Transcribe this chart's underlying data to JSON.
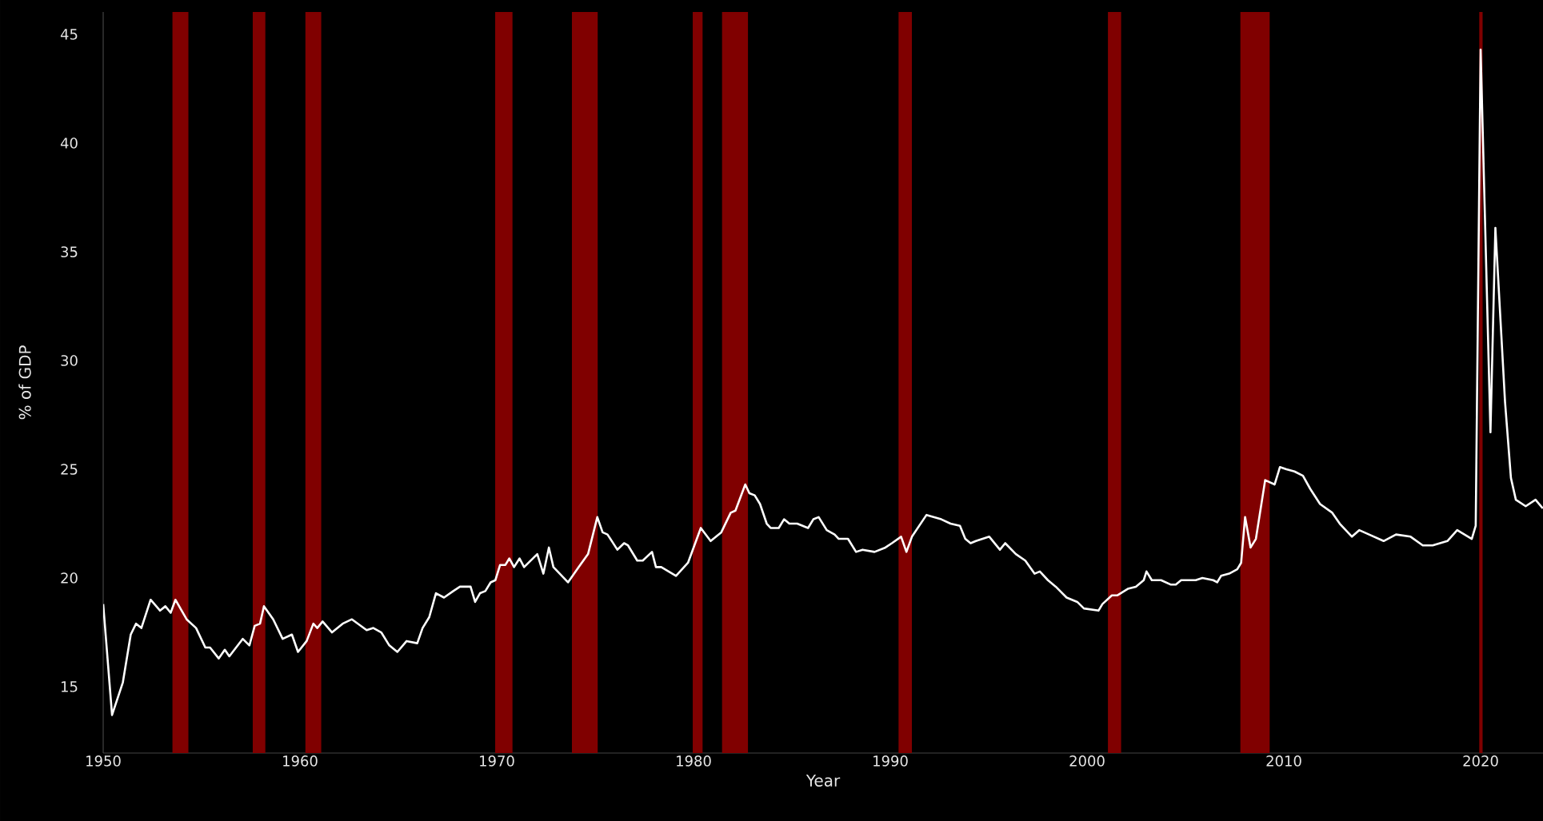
{
  "chart_data": {
    "type": "line",
    "xlabel": "Year",
    "ylabel": "% of GDP",
    "xlim": [
      1950,
      2023.17
    ],
    "ylim": [
      11.95,
      46.03
    ],
    "xticks": [
      1950,
      1960,
      1970,
      1980,
      1990,
      2000,
      2010,
      2020
    ],
    "yticks": [
      15,
      20,
      25,
      30,
      35,
      40,
      45
    ],
    "grid": false,
    "bands": [
      {
        "axis": "x",
        "from": 1953.52,
        "to": 1954.33,
        "color": "#800000"
      },
      {
        "axis": "x",
        "from": 1957.6,
        "to": 1958.24,
        "color": "#800000"
      },
      {
        "axis": "x",
        "from": 1960.27,
        "to": 1961.08,
        "color": "#800000"
      },
      {
        "axis": "x",
        "from": 1969.92,
        "to": 1970.8,
        "color": "#800000"
      },
      {
        "axis": "x",
        "from": 1973.82,
        "to": 1975.13,
        "color": "#800000"
      },
      {
        "axis": "x",
        "from": 1979.96,
        "to": 1980.46,
        "color": "#800000"
      },
      {
        "axis": "x",
        "from": 1981.45,
        "to": 1982.77,
        "color": "#800000"
      },
      {
        "axis": "x",
        "from": 1990.42,
        "to": 1991.1,
        "color": "#800000"
      },
      {
        "axis": "x",
        "from": 2001.06,
        "to": 2001.73,
        "color": "#800000"
      },
      {
        "axis": "x",
        "from": 2007.79,
        "to": 2009.28,
        "color": "#800000"
      },
      {
        "axis": "x",
        "from": 2019.93,
        "to": 2020.1,
        "color": "#800000"
      }
    ],
    "series": [
      {
        "color": "#ffffff",
        "x": [
          1950.0,
          1950.45,
          1951.0,
          1951.4,
          1951.67,
          1951.94,
          1952.41,
          1952.89,
          1953.16,
          1953.43,
          1953.67,
          1954.24,
          1954.72,
          1955.19,
          1955.43,
          1955.87,
          1956.18,
          1956.41,
          1957.09,
          1957.43,
          1957.7,
          1957.97,
          1958.17,
          1958.64,
          1959.12,
          1959.59,
          1959.9,
          1960.34,
          1960.68,
          1960.88,
          1961.15,
          1961.63,
          1962.17,
          1962.64,
          1963.39,
          1963.73,
          1964.13,
          1964.54,
          1964.95,
          1965.42,
          1965.96,
          1966.23,
          1966.57,
          1966.91,
          1967.32,
          1967.79,
          1968.13,
          1968.67,
          1968.9,
          1969.15,
          1969.42,
          1969.69,
          1969.93,
          1970.17,
          1970.44,
          1970.64,
          1970.88,
          1971.16,
          1971.39,
          1972.06,
          1972.37,
          1972.65,
          1972.88,
          1973.62,
          1974.16,
          1974.64,
          1975.11,
          1975.38,
          1975.63,
          1976.13,
          1976.47,
          1976.67,
          1977.14,
          1977.42,
          1977.89,
          1978.09,
          1978.36,
          1979.11,
          1979.72,
          1980.37,
          1980.87,
          1981.41,
          1981.89,
          1982.13,
          1982.63,
          1982.84,
          1983.11,
          1983.38,
          1983.72,
          1983.92,
          1984.33,
          1984.6,
          1984.87,
          1985.27,
          1985.82,
          1986.09,
          1986.36,
          1986.77,
          1987.17,
          1987.38,
          1987.85,
          1988.26,
          1988.59,
          1989.2,
          1989.75,
          1990.08,
          1990.55,
          1990.82,
          1991.1,
          1991.84,
          1992.59,
          1993.06,
          1993.54,
          1993.81,
          1994.08,
          1994.35,
          1995.03,
          1995.57,
          1995.84,
          1996.38,
          1996.86,
          1997.33,
          1997.6,
          1998.01,
          1998.41,
          1998.96,
          1999.5,
          1999.84,
          2000.58,
          2000.78,
          2001.26,
          2001.53,
          2002.07,
          2002.48,
          2002.88,
          2003.02,
          2003.29,
          2003.76,
          2004.24,
          2004.51,
          2004.78,
          2005.52,
          2005.86,
          2006.41,
          2006.61,
          2006.81,
          2007.22,
          2007.63,
          2007.83,
          2008.03,
          2008.31,
          2008.58,
          2009.05,
          2009.53,
          2009.8,
          2010.13,
          2010.54,
          2010.97,
          2011.34,
          2011.84,
          2012.46,
          2012.84,
          2013.46,
          2013.83,
          2014.33,
          2015.07,
          2015.7,
          2016.44,
          2017.06,
          2017.56,
          2018.31,
          2018.81,
          2019.55,
          2019.75,
          2020.0,
          2020.5,
          2020.75,
          2021.24,
          2021.54,
          2021.79,
          2022.29,
          2022.79,
          2023.16
        ],
        "values": [
          18.8,
          13.7,
          15.2,
          17.4,
          17.9,
          17.7,
          19.0,
          18.5,
          18.7,
          18.4,
          19.0,
          18.1,
          17.7,
          16.8,
          16.8,
          16.3,
          16.7,
          16.4,
          17.2,
          16.9,
          17.8,
          17.9,
          18.7,
          18.1,
          17.2,
          17.4,
          16.6,
          17.1,
          17.9,
          17.7,
          18.0,
          17.5,
          17.9,
          18.1,
          17.6,
          17.7,
          17.5,
          16.9,
          16.6,
          17.1,
          17.0,
          17.7,
          18.2,
          19.3,
          19.1,
          19.4,
          19.6,
          19.6,
          18.9,
          19.3,
          19.4,
          19.8,
          19.9,
          20.6,
          20.6,
          20.9,
          20.5,
          20.9,
          20.5,
          21.1,
          20.2,
          21.4,
          20.5,
          19.8,
          20.5,
          21.1,
          22.8,
          22.1,
          22.0,
          21.3,
          21.6,
          21.5,
          20.8,
          20.8,
          21.2,
          20.5,
          20.5,
          20.1,
          20.7,
          22.3,
          21.7,
          22.1,
          23.0,
          23.1,
          24.3,
          23.9,
          23.8,
          23.4,
          22.5,
          22.3,
          22.3,
          22.7,
          22.5,
          22.5,
          22.3,
          22.7,
          22.8,
          22.2,
          22.0,
          21.8,
          21.8,
          21.2,
          21.3,
          21.2,
          21.4,
          21.6,
          21.9,
          21.2,
          21.9,
          22.9,
          22.7,
          22.5,
          22.4,
          21.8,
          21.6,
          21.7,
          21.9,
          21.3,
          21.6,
          21.1,
          20.8,
          20.2,
          20.3,
          19.9,
          19.6,
          19.1,
          18.9,
          18.6,
          18.5,
          18.8,
          19.2,
          19.2,
          19.5,
          19.6,
          19.9,
          20.3,
          19.9,
          19.9,
          19.7,
          19.7,
          19.9,
          19.9,
          20.0,
          19.9,
          19.8,
          20.1,
          20.2,
          20.4,
          20.7,
          22.8,
          21.4,
          21.8,
          24.5,
          24.3,
          25.1,
          25.0,
          24.9,
          24.7,
          24.1,
          23.4,
          23.0,
          22.5,
          21.9,
          22.2,
          22.0,
          21.7,
          22.0,
          21.9,
          21.5,
          21.5,
          21.7,
          22.2,
          21.8,
          22.4,
          44.3,
          26.7,
          36.1,
          28.1,
          24.6,
          23.6,
          23.3,
          23.6,
          23.2
        ]
      }
    ]
  }
}
